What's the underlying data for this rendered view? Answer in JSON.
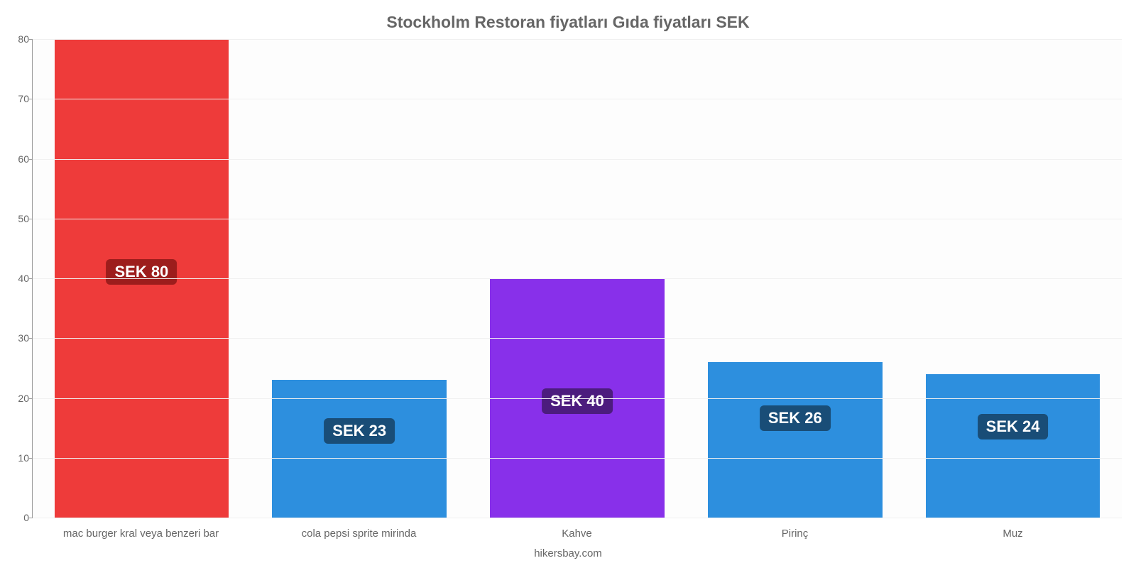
{
  "chart": {
    "type": "bar",
    "title": "Stockholm Restoran fiyatları Gıda fiyatları SEK",
    "title_fontsize": 23,
    "title_color": "#666666",
    "categories": [
      "mac burger kral veya benzeri bar",
      "cola pepsi sprite mirinda",
      "Kahve",
      "Pirinç",
      "Muz"
    ],
    "values": [
      80,
      23,
      40,
      26,
      24
    ],
    "value_labels": [
      "SEK 80",
      "SEK 23",
      "SEK 40",
      "SEK 26",
      "SEK 24"
    ],
    "bar_colors": [
      "#ee3b3a",
      "#2d8fde",
      "#8830ea",
      "#2d8fde",
      "#2d8fde"
    ],
    "badge_colors": [
      "#9d1d1c",
      "#194d77",
      "#4c1c7e",
      "#194d77",
      "#194d77"
    ],
    "badge_fontsize": 22,
    "ylim": [
      0,
      80
    ],
    "yticks": [
      0,
      10,
      20,
      30,
      40,
      50,
      60,
      70,
      80
    ],
    "ytick_fontsize": 14,
    "xlabel_fontsize": 15,
    "background_color": "#fdfdfd",
    "grid_color": "#f0f0f0",
    "axis_color": "#999999",
    "xlabel_color": "#666666",
    "bar_width_pct": 80,
    "credit": "hikersbay.com",
    "credit_fontsize": 15,
    "credit_color": "#666666"
  }
}
